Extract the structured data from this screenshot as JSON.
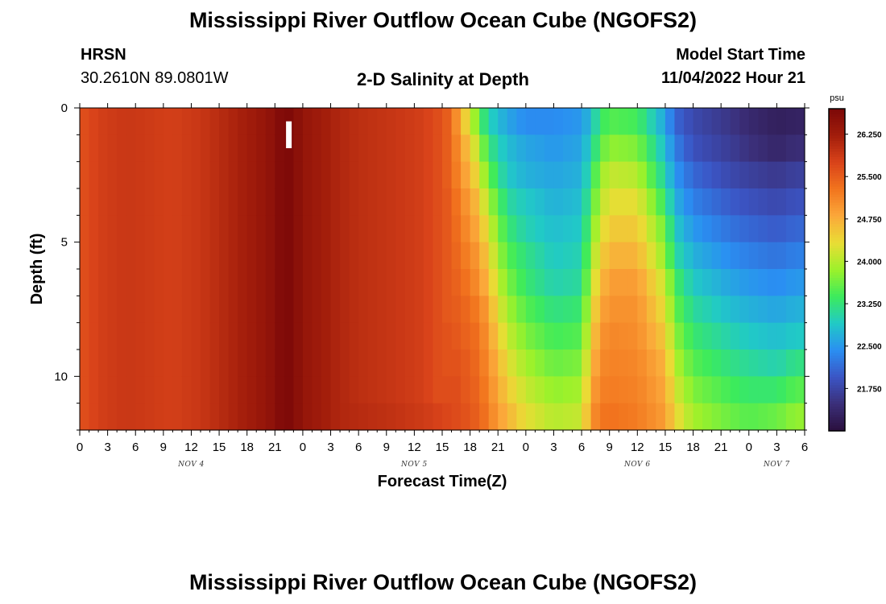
{
  "header": {
    "title": "Mississippi River Outflow Ocean Cube (NGOFS2)",
    "station_name": "HRSN",
    "station_coords": "30.2610N  89.0801W",
    "subtitle": "2-D Salinity at Depth",
    "model_start_label": "Model Start Time",
    "model_start_value": "11/04/2022 Hour 21"
  },
  "footer": {
    "title": "Mississippi River Outflow Ocean Cube (NGOFS2)"
  },
  "chart_data": {
    "type": "heatmap",
    "title": "2-D Salinity at Depth",
    "xlabel": "Forecast Time(Z)",
    "ylabel": "Depth (ft)",
    "x_tick_labels": [
      "0",
      "3",
      "6",
      "9",
      "12",
      "15",
      "18",
      "21",
      "0",
      "3",
      "6",
      "9",
      "12",
      "15",
      "18",
      "21",
      "0",
      "3",
      "6",
      "9",
      "12",
      "15",
      "18",
      "21",
      "0",
      "3",
      "6"
    ],
    "x_day_labels": [
      {
        "label": "NOV 4",
        "hour": 12
      },
      {
        "label": "NOV 5",
        "hour": 36
      },
      {
        "label": "NOV 6",
        "hour": 60
      },
      {
        "label": "NOV 7",
        "hour": 75
      }
    ],
    "xlim_hours": [
      0,
      78
    ],
    "x_unit": "hours since 11/04/2022 00Z",
    "ylim": [
      0,
      12
    ],
    "y_ticks": [
      0,
      5,
      10
    ],
    "now_marker_hour": 22.5,
    "colorbar": {
      "unit": "psu",
      "min": 21.0,
      "max": 26.7,
      "tick_values": [
        26.25,
        25.5,
        24.75,
        24.0,
        23.25,
        22.5,
        21.75
      ],
      "tick_labels": [
        "26.250",
        "25.500",
        "24.750",
        "24.000",
        "23.250",
        "22.500",
        "21.750"
      ],
      "colors": [
        "#2a0f3d",
        "#3b2f79",
        "#3b55c5",
        "#2a8ff2",
        "#21cac6",
        "#3ceb5c",
        "#9df12b",
        "#e9dd35",
        "#fba83a",
        "#f2741e",
        "#d9431a",
        "#a21d0b",
        "#7b0808"
      ]
    },
    "depth_levels_ft": [
      0,
      1,
      2,
      3,
      4,
      5,
      6,
      7,
      8,
      9,
      10,
      11,
      12
    ],
    "columns": [
      {
        "h": 0,
        "s": [
          25.6,
          25.6,
          25.6,
          25.6,
          25.6,
          25.6,
          25.6,
          25.6,
          25.6,
          25.6,
          25.6,
          25.6
        ]
      },
      {
        "h": 2,
        "s": [
          25.8,
          25.8,
          25.8,
          25.8,
          25.8,
          25.8,
          25.8,
          25.8,
          25.8,
          25.8,
          25.8,
          25.8
        ]
      },
      {
        "h": 5,
        "s": [
          25.9,
          25.9,
          25.9,
          25.9,
          25.9,
          25.9,
          25.9,
          25.9,
          25.9,
          25.9,
          25.9,
          25.9
        ]
      },
      {
        "h": 10,
        "s": [
          25.8,
          25.8,
          25.8,
          25.8,
          25.8,
          25.8,
          25.8,
          25.8,
          25.8,
          25.8,
          25.8,
          25.8
        ]
      },
      {
        "h": 13,
        "s": [
          25.9,
          25.9,
          25.9,
          25.9,
          25.9,
          25.9,
          25.9,
          25.9,
          25.9,
          25.9,
          25.9,
          25.9
        ]
      },
      {
        "h": 16,
        "s": [
          26.1,
          26.1,
          26.1,
          26.1,
          26.1,
          26.1,
          26.1,
          26.1,
          26.1,
          26.1,
          26.1,
          26.1
        ]
      },
      {
        "h": 19,
        "s": [
          26.3,
          26.3,
          26.3,
          26.3,
          26.3,
          26.3,
          26.3,
          26.3,
          26.3,
          26.3,
          26.3,
          26.3
        ]
      },
      {
        "h": 21,
        "s": [
          26.5,
          26.5,
          26.5,
          26.5,
          26.5,
          26.5,
          26.5,
          26.5,
          26.5,
          26.5,
          26.5,
          26.5
        ]
      },
      {
        "h": 22,
        "s": [
          26.7,
          26.7,
          26.7,
          26.7,
          26.7,
          26.7,
          26.7,
          26.7,
          26.7,
          26.7,
          26.7,
          26.7
        ]
      },
      {
        "h": 23,
        "s": [
          26.6,
          26.6,
          26.6,
          26.6,
          26.6,
          26.6,
          26.6,
          26.6,
          26.6,
          26.6,
          26.6,
          26.6
        ]
      },
      {
        "h": 24,
        "s": [
          26.4,
          26.4,
          26.4,
          26.4,
          26.4,
          26.4,
          26.4,
          26.4,
          26.4,
          26.4,
          26.4,
          26.4
        ]
      },
      {
        "h": 26,
        "s": [
          26.25,
          26.25,
          26.25,
          26.25,
          26.25,
          26.25,
          26.25,
          26.25,
          26.25,
          26.25,
          26.25,
          26.25
        ]
      },
      {
        "h": 28,
        "s": [
          26.1,
          26.1,
          26.1,
          26.1,
          26.1,
          26.1,
          26.1,
          26.1,
          26.1,
          26.1,
          26.1,
          26.1
        ]
      },
      {
        "h": 30,
        "s": [
          26.0,
          26.0,
          26.0,
          26.0,
          26.0,
          26.0,
          26.0,
          26.0,
          26.0,
          26.0,
          26.0,
          26.05
        ]
      },
      {
        "h": 34,
        "s": [
          25.9,
          25.9,
          25.9,
          25.9,
          25.9,
          25.9,
          25.9,
          25.9,
          25.9,
          25.9,
          25.9,
          25.95
        ]
      },
      {
        "h": 37,
        "s": [
          25.8,
          25.8,
          25.8,
          25.8,
          25.8,
          25.8,
          25.8,
          25.8,
          25.8,
          25.8,
          25.8,
          25.85
        ]
      },
      {
        "h": 39,
        "s": [
          25.6,
          25.6,
          25.6,
          25.6,
          25.6,
          25.6,
          25.6,
          25.6,
          25.6,
          25.6,
          25.6,
          25.75
        ]
      },
      {
        "h": 40,
        "s": [
          25.4,
          25.4,
          25.4,
          25.5,
          25.5,
          25.5,
          25.5,
          25.5,
          25.6,
          25.6,
          25.7,
          25.7
        ]
      },
      {
        "h": 41,
        "s": [
          24.7,
          24.9,
          25.0,
          25.1,
          25.2,
          25.3,
          25.4,
          25.5,
          25.5,
          25.6,
          25.6,
          25.65
        ]
      },
      {
        "h": 42,
        "s": [
          24.2,
          24.5,
          24.7,
          24.9,
          25.0,
          25.1,
          25.2,
          25.3,
          25.4,
          25.45,
          25.5,
          25.55
        ]
      },
      {
        "h": 43,
        "s": [
          23.5,
          23.9,
          24.2,
          24.5,
          24.7,
          24.9,
          25.0,
          25.2,
          25.3,
          25.35,
          25.4,
          25.45
        ]
      },
      {
        "h": 44,
        "s": [
          23.0,
          23.3,
          23.6,
          23.9,
          24.2,
          24.4,
          24.6,
          24.8,
          24.9,
          25.0,
          25.1,
          25.2
        ]
      },
      {
        "h": 45,
        "s": [
          22.8,
          23.0,
          23.2,
          23.5,
          23.7,
          23.9,
          24.1,
          24.3,
          24.5,
          24.7,
          24.8,
          24.9
        ]
      },
      {
        "h": 46,
        "s": [
          22.6,
          22.8,
          22.9,
          23.1,
          23.3,
          23.5,
          23.7,
          23.9,
          24.1,
          24.3,
          24.5,
          24.7
        ]
      },
      {
        "h": 48,
        "s": [
          22.4,
          22.6,
          22.7,
          22.9,
          23.0,
          23.2,
          23.3,
          23.5,
          23.7,
          23.9,
          24.1,
          24.3
        ]
      },
      {
        "h": 51,
        "s": [
          22.4,
          22.5,
          22.6,
          22.7,
          22.8,
          22.9,
          23.0,
          23.2,
          23.4,
          23.6,
          23.8,
          24.0
        ]
      },
      {
        "h": 54,
        "s": [
          22.5,
          22.6,
          22.7,
          22.8,
          22.9,
          23.0,
          23.1,
          23.3,
          23.5,
          23.7,
          23.9,
          24.1
        ]
      },
      {
        "h": 55,
        "s": [
          22.8,
          23.0,
          23.2,
          23.4,
          23.6,
          23.8,
          24.0,
          24.2,
          24.4,
          24.6,
          24.8,
          24.95
        ]
      },
      {
        "h": 56,
        "s": [
          23.3,
          23.5,
          23.8,
          24.0,
          24.2,
          24.4,
          24.6,
          24.8,
          24.95,
          25.05,
          25.15,
          25.25
        ]
      },
      {
        "h": 57,
        "s": [
          23.5,
          23.8,
          24.1,
          24.3,
          24.5,
          24.7,
          24.9,
          25.0,
          25.1,
          25.15,
          25.2,
          25.3
        ]
      },
      {
        "h": 60,
        "s": [
          23.4,
          23.7,
          24.0,
          24.3,
          24.5,
          24.7,
          24.9,
          25.0,
          25.05,
          25.1,
          25.15,
          25.2
        ]
      },
      {
        "h": 63,
        "s": [
          22.6,
          22.8,
          23.0,
          23.3,
          23.6,
          23.8,
          24.1,
          24.3,
          24.5,
          24.7,
          24.8,
          24.9
        ]
      },
      {
        "h": 64,
        "s": [
          22.1,
          22.3,
          22.5,
          22.7,
          22.9,
          23.1,
          23.4,
          23.6,
          23.8,
          24.0,
          24.2,
          24.4
        ]
      },
      {
        "h": 66,
        "s": [
          21.8,
          21.9,
          22.1,
          22.3,
          22.5,
          22.7,
          22.9,
          23.1,
          23.3,
          23.5,
          23.7,
          23.9
        ]
      },
      {
        "h": 70,
        "s": [
          21.55,
          21.65,
          21.8,
          22.0,
          22.2,
          22.4,
          22.6,
          22.8,
          23.0,
          23.2,
          23.4,
          23.6
        ]
      },
      {
        "h": 72,
        "s": [
          21.4,
          21.5,
          21.7,
          21.9,
          22.1,
          22.3,
          22.5,
          22.7,
          22.9,
          23.1,
          23.3,
          23.5
        ]
      },
      {
        "h": 75,
        "s": [
          21.25,
          21.35,
          21.6,
          21.8,
          22.0,
          22.2,
          22.4,
          22.6,
          22.8,
          23.0,
          23.3,
          23.6
        ]
      },
      {
        "h": 77,
        "s": [
          21.3,
          21.45,
          21.7,
          21.9,
          22.1,
          22.3,
          22.5,
          22.7,
          22.9,
          23.2,
          23.5,
          23.8
        ]
      }
    ]
  }
}
